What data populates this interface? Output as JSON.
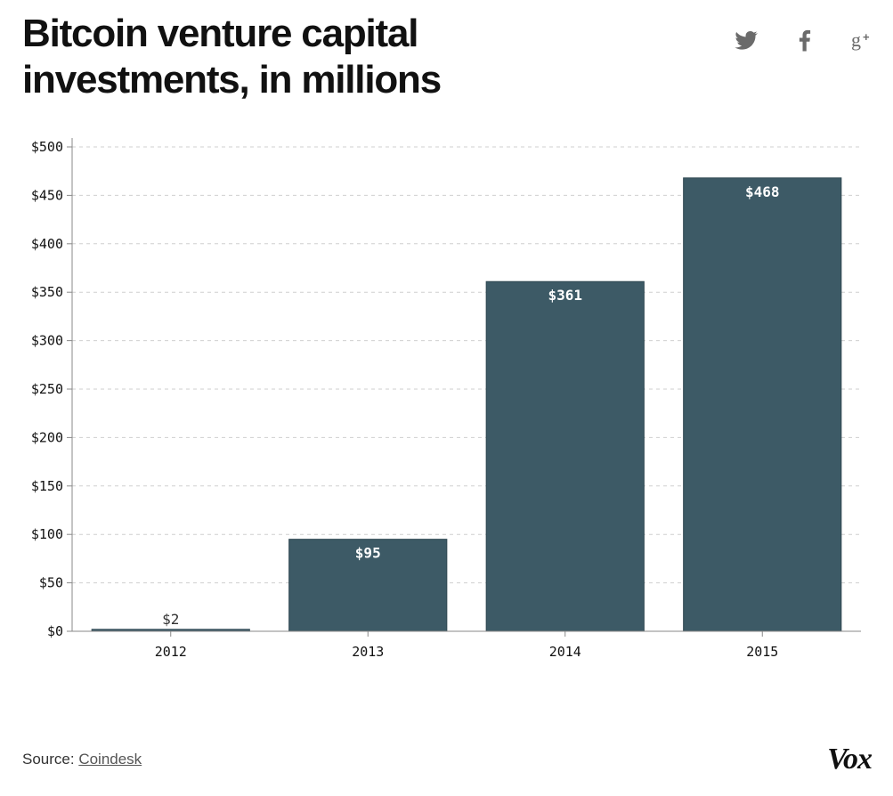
{
  "header": {
    "title": "Bitcoin venture capital investments, in millions"
  },
  "share": {
    "icons": [
      "twitter-icon",
      "facebook-icon",
      "google-plus-icon"
    ]
  },
  "chart_data": {
    "type": "bar",
    "title": "Bitcoin venture capital investments, in millions",
    "xlabel": "",
    "ylabel": "",
    "categories": [
      "2012",
      "2013",
      "2014",
      "2015"
    ],
    "values": [
      2,
      95,
      361,
      468
    ],
    "value_labels": [
      "$2",
      "$95",
      "$361",
      "$468"
    ],
    "ylim": [
      0,
      500
    ],
    "yticks": [
      0,
      50,
      100,
      150,
      200,
      250,
      300,
      350,
      400,
      450,
      500
    ],
    "ytick_labels": [
      "$0",
      "$50",
      "$100",
      "$150",
      "$200",
      "$250",
      "$300",
      "$350",
      "$400",
      "$450",
      "$500"
    ],
    "grid": true,
    "bar_color": "#3d5a66",
    "grid_color": "#cfcfcf"
  },
  "footer": {
    "source_prefix": "Source: ",
    "source_link": "Coindesk",
    "brand": "Vox"
  }
}
